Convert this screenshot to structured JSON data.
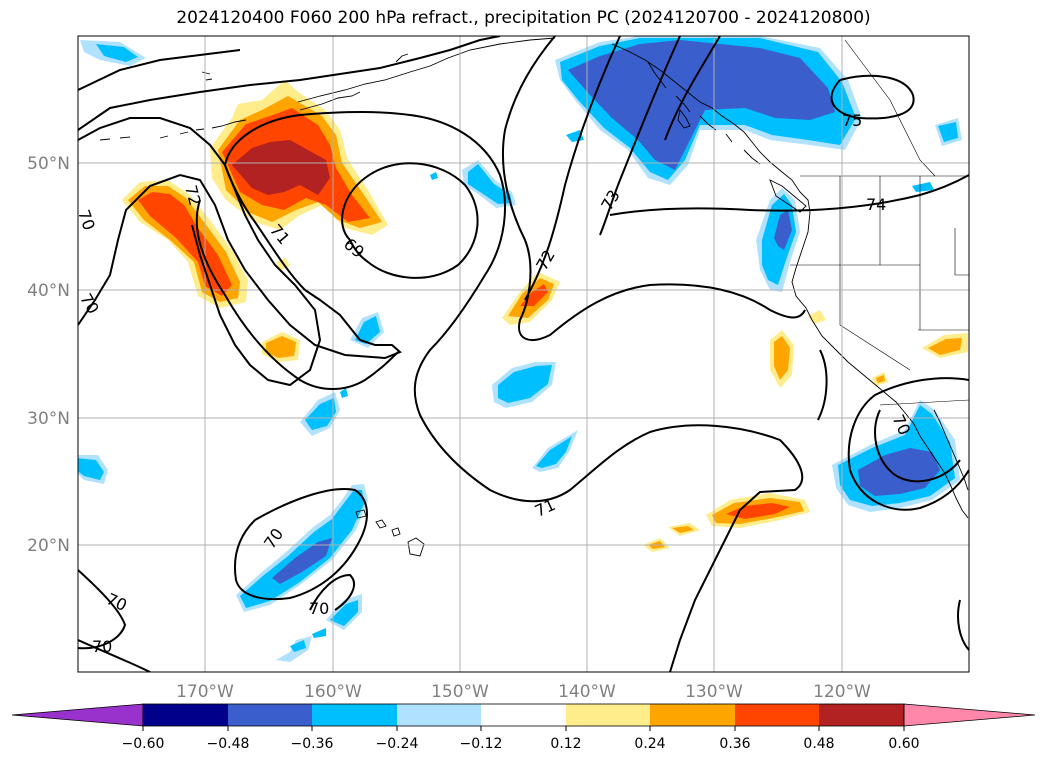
{
  "title": "2024120400 F060 200 hPa refract., precipitation PC (2024120700 - 2024120800)",
  "lon_ticks": [
    "170°W",
    "160°W",
    "150°W",
    "140°W",
    "130°W",
    "120°W"
  ],
  "lat_ticks": [
    "50°N",
    "40°N",
    "30°N",
    "20°N"
  ],
  "contour_labels": [
    "70",
    "70",
    "70",
    "70",
    "70",
    "70",
    "71",
    "71",
    "72",
    "72",
    "73",
    "74",
    "75",
    "69",
    "70"
  ],
  "colorbar": {
    "tick_labels": [
      "−0.60",
      "−0.48",
      "−0.36",
      "−0.24",
      "−0.12",
      "0.12",
      "0.24",
      "0.36",
      "0.48",
      "0.60"
    ],
    "colors": [
      "#9932cc",
      "#00008b",
      "#3a5fcd",
      "#00bfff",
      "#b0e2ff",
      "#ffffff",
      "#ffec8b",
      "#ffa500",
      "#ff4500",
      "#b22222",
      "#ff88aa"
    ]
  },
  "chart_data": {
    "type": "map",
    "projection": "plate carree",
    "lon_range": [
      -180,
      -110
    ],
    "lat_range": [
      10,
      60
    ],
    "contour_field": "200 hPa refractivity",
    "contour_levels": [
      69,
      70,
      71,
      72,
      73,
      74,
      75
    ],
    "shaded_field": "precipitation PC",
    "shading_levels": [
      -0.6,
      -0.48,
      -0.36,
      -0.24,
      -0.12,
      0.12,
      0.24,
      0.36,
      0.48,
      0.6
    ],
    "grid": true
  }
}
